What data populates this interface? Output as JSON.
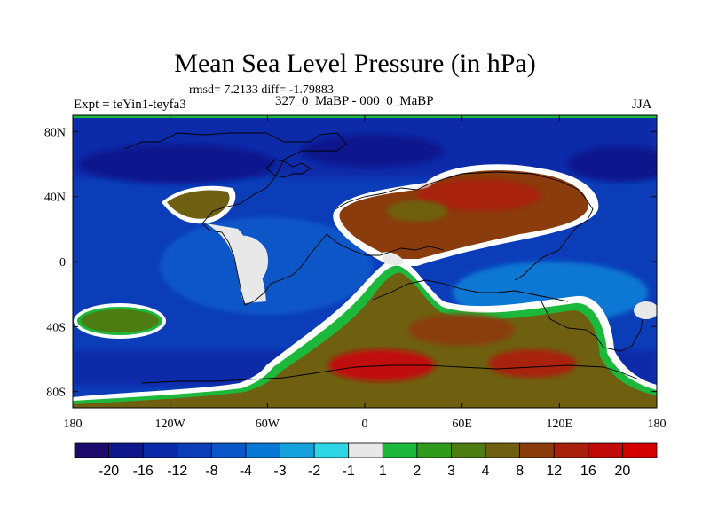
{
  "title": "Mean Sea Level Pressure (in hPa)",
  "subtitle": "rmsd= 7.2133 diff= -1.79883",
  "left_label": "Expt = teYin1-teyfa3",
  "center_label": "327_0_MaBP - 000_0_MaBP",
  "right_label": "JJA",
  "map": {
    "lon_range": [
      -180,
      180
    ],
    "lat_range": [
      -90,
      90
    ],
    "lat_ticks": [
      {
        "lat": 80,
        "label": "80N"
      },
      {
        "lat": 40,
        "label": "40N"
      },
      {
        "lat": 0,
        "label": "0"
      },
      {
        "lat": -40,
        "label": "40S"
      },
      {
        "lat": -80,
        "label": "80S"
      }
    ],
    "lon_ticks": [
      {
        "lon": -180,
        "label": "180"
      },
      {
        "lon": -120,
        "label": "120W"
      },
      {
        "lon": -60,
        "label": "60W"
      },
      {
        "lon": 0,
        "label": "0"
      },
      {
        "lon": 60,
        "label": "60E"
      },
      {
        "lon": 120,
        "label": "120E"
      },
      {
        "lon": 180,
        "label": "180"
      }
    ]
  },
  "colorbar": {
    "colors": [
      "#1c0a6b",
      "#10178c",
      "#0b2aa8",
      "#0b3db8",
      "#0a56c8",
      "#0878d4",
      "#15a2dc",
      "#2fd6e6",
      "#e8e8e8",
      "#1bb83c",
      "#2f9a1c",
      "#4d7d12",
      "#6e6010",
      "#8a3c0c",
      "#a8200c",
      "#c00a0a",
      "#d40000"
    ],
    "labels": [
      "-20",
      "-16",
      "-12",
      "-8",
      "-4",
      "-3",
      "-2",
      "-1",
      "1",
      "2",
      "3",
      "4",
      "8",
      "12",
      "16",
      "20"
    ]
  }
}
